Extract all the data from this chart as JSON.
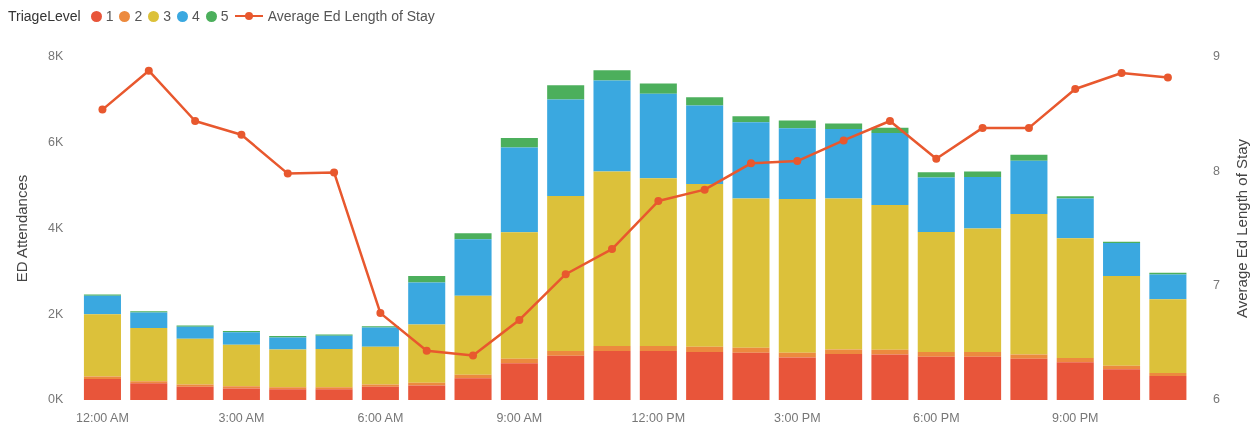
{
  "chart_data": {
    "type": "bar",
    "stacked": true,
    "legend_title": "TriageLevel",
    "legend": "top left",
    "ylabel": "ED Attendances",
    "y2label": "Average Ed Length of Stay",
    "grid": false,
    "marker": "circle",
    "categories": [
      "12:00 AM",
      null,
      null,
      "3:00 AM",
      null,
      null,
      "6:00 AM",
      null,
      null,
      "9:00 AM",
      null,
      null,
      "12:00 PM",
      null,
      null,
      "3:00 PM",
      null,
      null,
      "6:00 PM",
      null,
      null,
      "9:00 PM",
      null,
      null
    ],
    "ylim": [
      0,
      8000
    ],
    "yticks": [
      {
        "value": 0,
        "label": "0K"
      },
      {
        "value": 2000,
        "label": "2K"
      },
      {
        "value": 4000,
        "label": "4K"
      },
      {
        "value": 6000,
        "label": "6K"
      },
      {
        "value": 8000,
        "label": "8K"
      }
    ],
    "y2lim": [
      6,
      9
    ],
    "y2ticks": [
      6,
      7,
      8,
      9
    ],
    "series": [
      {
        "name": "1",
        "color": "#e8553a",
        "values": [
          490,
          390,
          310,
          270,
          250,
          250,
          310,
          340,
          510,
          860,
          1030,
          1140,
          1140,
          1120,
          1100,
          990,
          1070,
          1060,
          1010,
          1010,
          960,
          880,
          720,
          560
        ]
      },
      {
        "name": "2",
        "color": "#ec8a3e",
        "values": [
          60,
          50,
          50,
          50,
          50,
          50,
          50,
          60,
          80,
          100,
          110,
          120,
          120,
          120,
          120,
          110,
          110,
          110,
          110,
          110,
          100,
          100,
          80,
          70
        ]
      },
      {
        "name": "3",
        "color": "#dcc13a",
        "values": [
          1450,
          1240,
          1070,
          970,
          880,
          890,
          880,
          1360,
          1840,
          2950,
          3620,
          4070,
          3910,
          3800,
          3480,
          3590,
          3520,
          3380,
          2800,
          2880,
          3280,
          2790,
          2090,
          1720
        ]
      },
      {
        "name": "4",
        "color": "#3aa8e0",
        "values": [
          430,
          360,
          280,
          290,
          280,
          310,
          450,
          980,
          1320,
          1980,
          2250,
          2120,
          1970,
          1830,
          1780,
          1650,
          1620,
          1680,
          1270,
          1200,
          1240,
          930,
          770,
          580
        ]
      },
      {
        "name": "5",
        "color": "#4caf5c",
        "values": [
          30,
          30,
          30,
          30,
          30,
          30,
          30,
          150,
          140,
          220,
          330,
          240,
          240,
          190,
          140,
          180,
          130,
          120,
          120,
          130,
          140,
          50,
          30,
          40
        ]
      },
      {
        "name": "Average Ed Length of Stay",
        "type": "line",
        "axis": "y2",
        "color": "#e8582e",
        "values": [
          8.54,
          8.88,
          8.44,
          8.32,
          7.98,
          7.99,
          6.76,
          6.43,
          6.39,
          6.7,
          7.1,
          7.32,
          7.74,
          7.84,
          8.07,
          8.09,
          8.27,
          8.44,
          8.11,
          8.38,
          8.38,
          8.72,
          8.86,
          8.82
        ]
      }
    ]
  }
}
